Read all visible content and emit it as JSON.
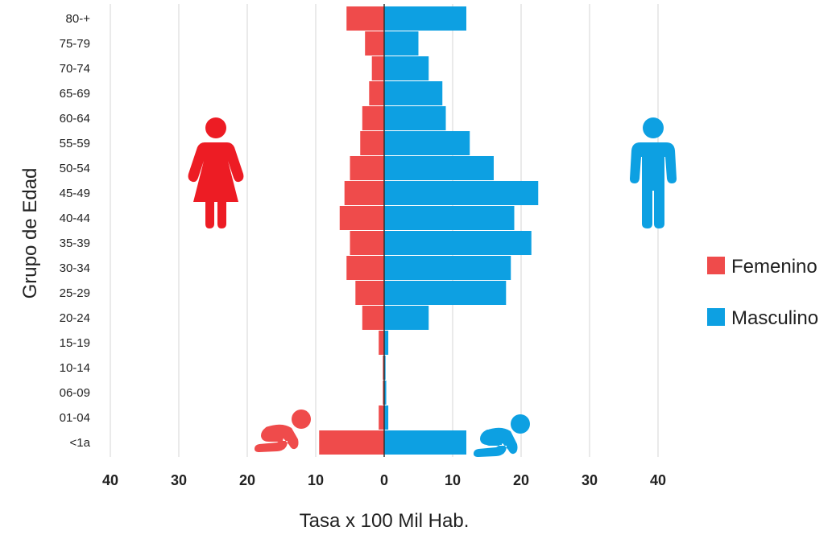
{
  "chart_data": {
    "type": "bar",
    "orientation": "horizontal-population-pyramid",
    "ylabel": "Grupo de Edad",
    "xlabel": "Tasa x 100 Mil Hab.",
    "categories": [
      "80-+",
      "75-79",
      "70-74",
      "65-69",
      "60-64",
      "55-59",
      "50-54",
      "45-49",
      "40-44",
      "35-39",
      "30-34",
      "25-29",
      "20-24",
      "15-19",
      "10-14",
      "06-09",
      "01-04",
      "<1a"
    ],
    "xticks": [
      "40",
      "30",
      "20",
      "10",
      "0",
      "10",
      "20",
      "30",
      "40"
    ],
    "xlim": [
      -40,
      40
    ],
    "grid": true,
    "legend_position": "right",
    "series": [
      {
        "name": "Femenino",
        "color": "#ef4b4b",
        "side": "left",
        "values": [
          5.5,
          2.8,
          1.8,
          2.2,
          3.2,
          3.5,
          5.0,
          5.8,
          6.5,
          5.0,
          5.5,
          4.2,
          3.2,
          0.8,
          0.2,
          0.2,
          0.8,
          9.5
        ]
      },
      {
        "name": "Masculino",
        "color": "#0da0e2",
        "side": "right",
        "values": [
          12.0,
          5.0,
          6.5,
          8.5,
          9.0,
          12.5,
          16.0,
          22.5,
          19.0,
          21.5,
          18.5,
          17.8,
          6.5,
          0.6,
          0.2,
          0.3,
          0.6,
          12.0
        ]
      }
    ]
  },
  "icons": {
    "female": "woman-icon",
    "male": "man-icon",
    "baby_left": "crawling-baby-icon",
    "baby_right": "crawling-baby-icon"
  }
}
